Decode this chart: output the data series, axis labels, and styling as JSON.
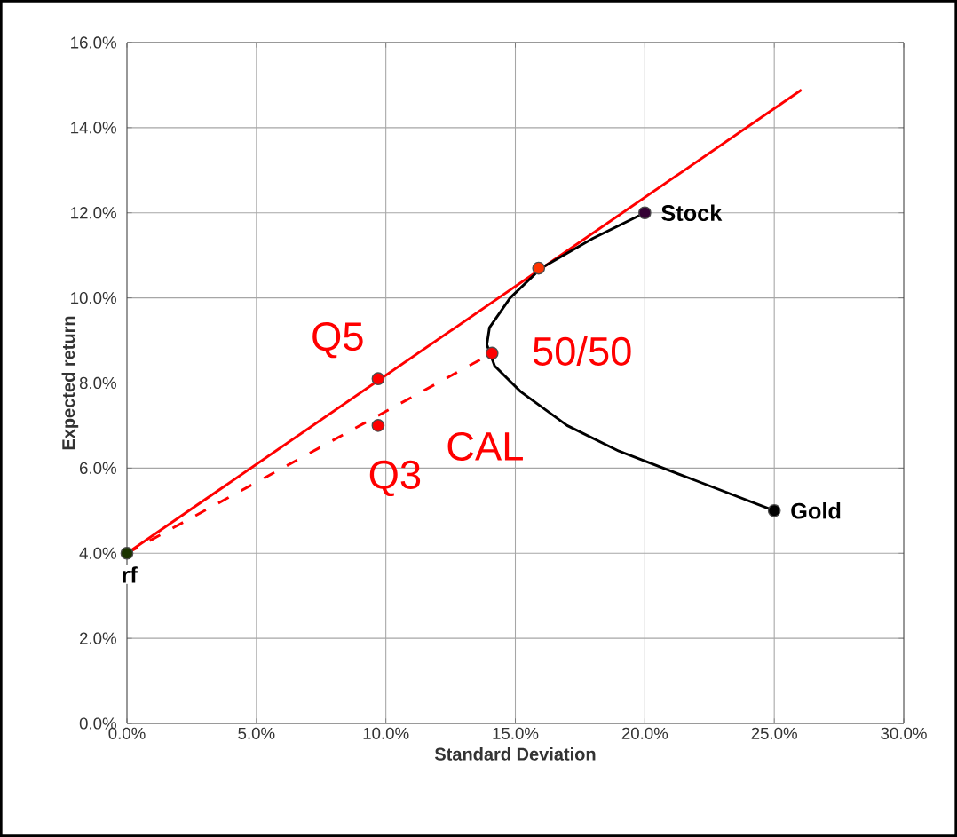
{
  "chart_data": {
    "type": "line",
    "xlabel": "Standard Deviation",
    "ylabel": "Expected return",
    "xlim": [
      0,
      30
    ],
    "ylim": [
      0,
      16
    ],
    "xticks": [
      {
        "value": 0,
        "label": "0.0%"
      },
      {
        "value": 5,
        "label": "5.0%"
      },
      {
        "value": 10,
        "label": "10.0%"
      },
      {
        "value": 15,
        "label": "15.0%"
      },
      {
        "value": 20,
        "label": "20.0%"
      },
      {
        "value": 25,
        "label": "25.0%"
      },
      {
        "value": 30,
        "label": "30.0%"
      }
    ],
    "yticks": [
      {
        "value": 0,
        "label": "0.0%"
      },
      {
        "value": 2,
        "label": "2.0%"
      },
      {
        "value": 4,
        "label": "4.0%"
      },
      {
        "value": 6,
        "label": "6.0%"
      },
      {
        "value": 8,
        "label": "8.0%"
      },
      {
        "value": 10,
        "label": "10.0%"
      },
      {
        "value": 12,
        "label": "12.0%"
      },
      {
        "value": 14,
        "label": "14.0%"
      },
      {
        "value": 16,
        "label": "16.0%"
      }
    ],
    "grid": true,
    "series": [
      {
        "color": "#ff0000",
        "x": [
          0,
          26.05
        ],
        "values": [
          4,
          14.89
        ]
      },
      {
        "color": "#000000",
        "x": [
          20,
          18,
          16,
          14.8,
          14.0,
          13.9,
          14.2,
          15.2,
          17.0,
          19.0,
          22.0,
          25.0
        ],
        "values": [
          12,
          11.4,
          10.7,
          10.0,
          9.3,
          8.9,
          8.4,
          7.8,
          7.0,
          6.4,
          5.7,
          5.0
        ]
      },
      {
        "color": "#ff0000",
        "line_style": "dashed",
        "x": [
          0,
          14.1
        ],
        "values": [
          4,
          8.7
        ]
      },
      {
        "type": "scatter",
        "marker": "circle",
        "color": "#ff3300",
        "x": [
          15.9
        ],
        "values": [
          10.7
        ]
      },
      {
        "type": "scatter",
        "marker": "circle",
        "color": "#ff0000",
        "x": [
          9.7,
          9.7,
          14.1
        ],
        "values": [
          8.1,
          7.0,
          8.7
        ]
      },
      {
        "type": "scatter",
        "marker": "circle",
        "name": "rf",
        "color": "#1a3300",
        "x": [
          0
        ],
        "values": [
          4
        ]
      },
      {
        "type": "scatter",
        "marker": "circle",
        "name": "Stock",
        "color": "#330033",
        "x": [
          20
        ],
        "values": [
          12
        ]
      },
      {
        "type": "scatter",
        "marker": "circle",
        "name": "Gold",
        "color": "#000000",
        "x": [
          25
        ],
        "values": [
          5
        ]
      }
    ],
    "annotations": [
      {
        "text": "Q5",
        "x": 9.7,
        "y": 8.1
      },
      {
        "text": "Q3",
        "x": 9.7,
        "y": 7.0
      },
      {
        "text": "50/50",
        "x": 14.1,
        "y": 8.7
      },
      {
        "text": "CAL",
        "x": 12,
        "y": 7.9
      }
    ]
  }
}
